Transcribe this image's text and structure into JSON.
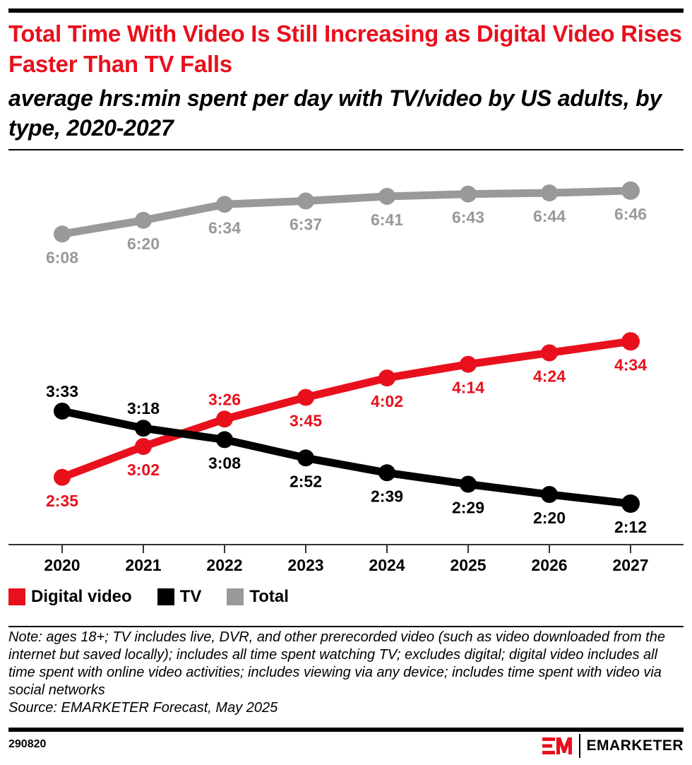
{
  "header": {
    "title": "Total Time With Video Is Still Increasing as Digital Video Rises Faster Than TV Falls",
    "subtitle": "average hrs:min spent per day with TV/video by US adults, by type, 2020-2027"
  },
  "colors": {
    "digital_video": "#e8101d",
    "tv": "#000000",
    "total": "#999999",
    "title": "#e8101d"
  },
  "chart_data": {
    "type": "line",
    "title": "Total Time With Video Is Still Increasing as Digital Video Rises Faster Than TV Falls",
    "subtitle": "average hrs:min spent per day with TV/video by US adults, by type, 2020-2027",
    "xlabel": "",
    "ylabel": "",
    "unit": "hrs:min per day",
    "grid": false,
    "legend_position": "bottom-left",
    "x": [
      "2020",
      "2021",
      "2022",
      "2023",
      "2024",
      "2025",
      "2026",
      "2027"
    ],
    "series": [
      {
        "key": "total",
        "name": "Total",
        "color": "#999999",
        "labels": [
          "6:08",
          "6:20",
          "6:34",
          "6:37",
          "6:41",
          "6:43",
          "6:44",
          "6:46"
        ],
        "values_minutes": [
          368,
          380,
          394,
          397,
          401,
          403,
          404,
          406
        ],
        "label_side": [
          "below",
          "below",
          "below",
          "below",
          "below",
          "below",
          "below",
          "below"
        ]
      },
      {
        "key": "digital_video",
        "name": "Digital video",
        "color": "#e8101d",
        "labels": [
          "2:35",
          "3:02",
          "3:26",
          "3:45",
          "4:02",
          "4:14",
          "4:24",
          "4:34"
        ],
        "values_minutes": [
          155,
          182,
          206,
          225,
          242,
          254,
          264,
          274
        ],
        "label_side": [
          "below",
          "below",
          "above",
          "below",
          "below",
          "below",
          "below",
          "below"
        ]
      },
      {
        "key": "tv",
        "name": "TV",
        "color": "#000000",
        "labels": [
          "3:33",
          "3:18",
          "3:08",
          "2:52",
          "2:39",
          "2:29",
          "2:20",
          "2:12"
        ],
        "values_minutes": [
          213,
          198,
          188,
          172,
          159,
          149,
          140,
          132
        ],
        "label_side": [
          "above",
          "above",
          "below",
          "below",
          "below",
          "below",
          "below",
          "below"
        ]
      }
    ]
  },
  "legend": [
    {
      "label": "Digital video",
      "color": "#e8101d"
    },
    {
      "label": "TV",
      "color": "#000000"
    },
    {
      "label": "Total",
      "color": "#999999"
    }
  ],
  "footer": {
    "note": "Note: ages 18+; TV includes live, DVR, and other prerecorded video (such as video downloaded from the internet but saved locally); includes all time spent watching TV; excludes digital; digital video includes all time spent with online video activities; includes viewing via any device; includes time spent with video via social networks",
    "source": "Source: EMARKETER Forecast, May 2025",
    "chart_id": "290820",
    "brand": "EMARKETER"
  }
}
